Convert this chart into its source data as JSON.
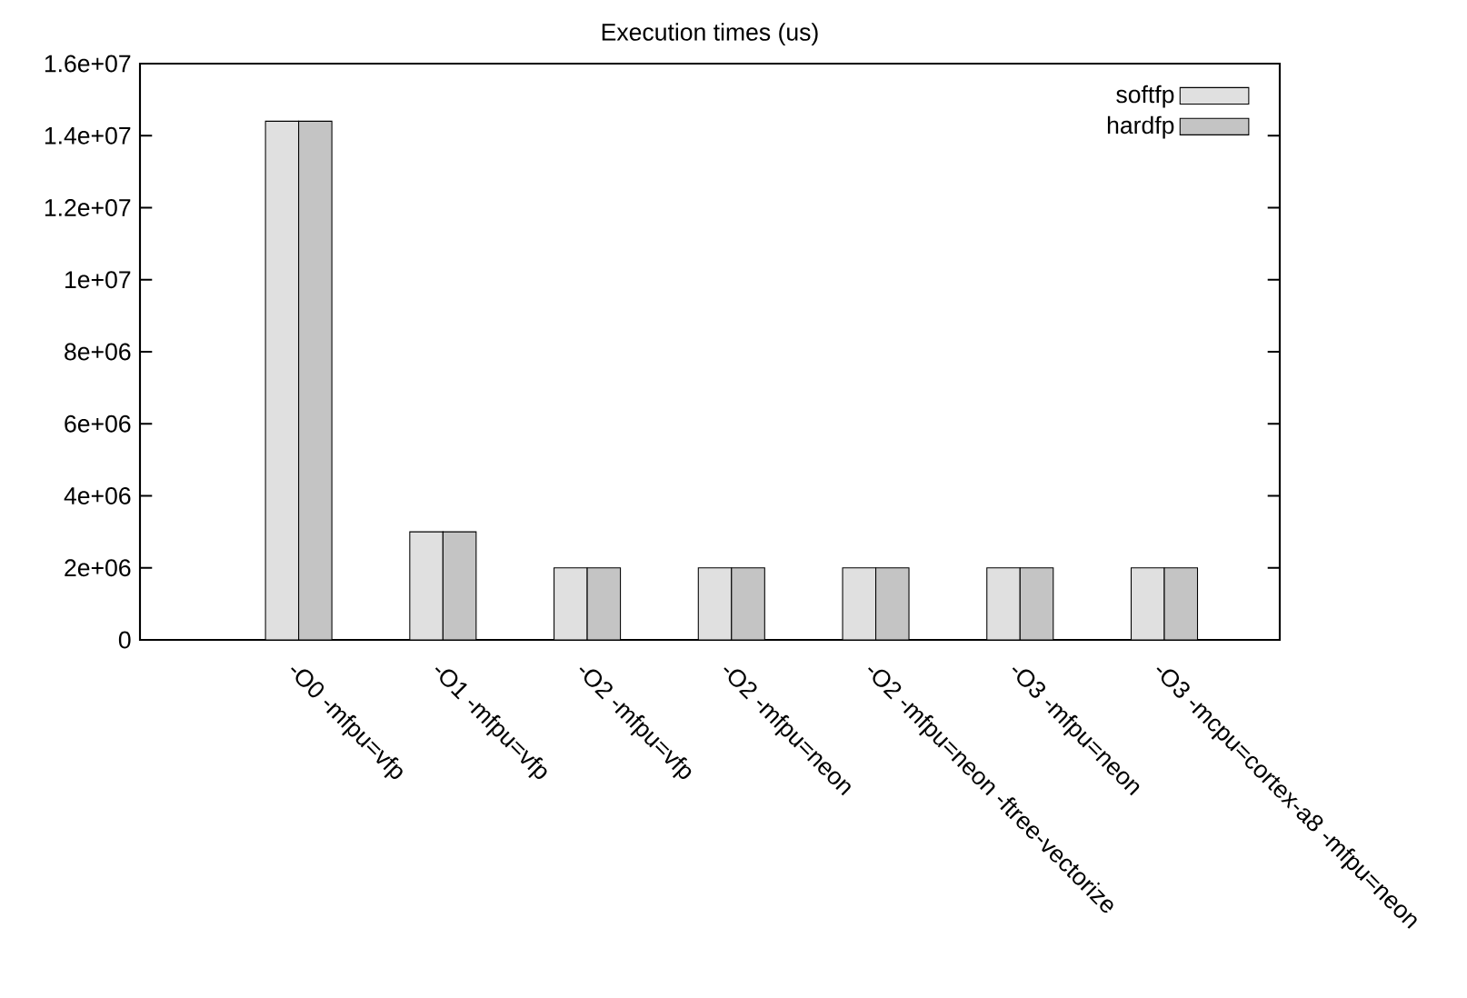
{
  "chart_data": {
    "type": "bar",
    "title": "Execution times (us)",
    "categories": [
      "-O0 -mfpu=vfp",
      "-O1 -mfpu=vfp",
      "-O2 -mfpu=vfp",
      "-O2 -mfpu=neon",
      "-O2 -mfpu=neon -ftree-vectorize",
      "-O3 -mfpu=neon",
      "-O3 -mcpu=cortex-a8 -mfpu=neon"
    ],
    "series": [
      {
        "name": "softfp",
        "color": "#e0e0e0",
        "values": [
          14400000,
          3000000,
          2000000,
          2000000,
          2000000,
          2000000,
          2000000
        ]
      },
      {
        "name": "hardfp",
        "color": "#c4c4c4",
        "values": [
          14400000,
          3000000,
          2000000,
          2000000,
          2000000,
          2000000,
          2000000
        ]
      }
    ],
    "ylim": [
      0,
      16000000
    ],
    "yticks": [
      0,
      {
        "value": 2000000,
        "label": "2e+06"
      },
      {
        "value": 4000000,
        "label": "4e+06"
      },
      {
        "value": 6000000,
        "label": "6e+06"
      },
      {
        "value": 8000000,
        "label": "8e+06"
      },
      {
        "value": 10000000,
        "label": "1e+07"
      },
      {
        "value": 12000000,
        "label": "1.2e+07"
      },
      {
        "value": 14000000,
        "label": "1.4e+07"
      },
      {
        "value": 16000000,
        "label": "1.6e+07"
      }
    ],
    "legend": "top right"
  }
}
